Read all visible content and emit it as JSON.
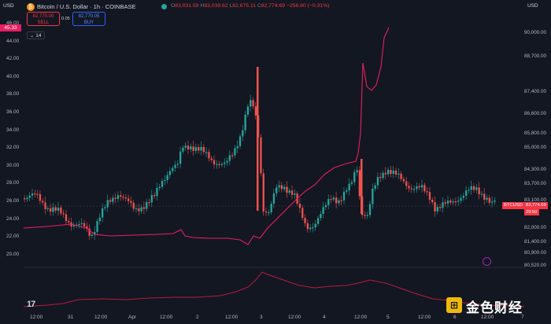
{
  "header": {
    "symbol_icon": "bitcoin-icon",
    "title": "Bitcoin / U.S. Dollar · 1h · COINBASE",
    "ohlc": {
      "o_label": "O",
      "o": "83,031.59",
      "h_label": "H",
      "h": "83,039.62",
      "l_label": "L",
      "l": "82,675.11",
      "c_label": "C",
      "c": "82,774.69",
      "chg": "−256.90 (−0.31%)"
    },
    "sell": {
      "price": "82,770.00",
      "label": "SELL"
    },
    "buy": {
      "price": "82,770.05",
      "label": "BUY"
    },
    "spread": "0.05"
  },
  "left_axis": {
    "currency": "USD",
    "current_tag": "45.33",
    "labels": [
      "46.00",
      "44.00",
      "42.00",
      "40.00",
      "38.00",
      "36.00",
      "34.00",
      "32.00",
      "30.00",
      "28.00",
      "26.00",
      "24.00",
      "22.00",
      "20.00"
    ]
  },
  "indicator_label": "14",
  "right_axis": {
    "currency": "USD",
    "labels": [
      "90,000.00",
      "88,700.00",
      "87,400.00",
      "86,600.00",
      "85,800.00",
      "85,000.00",
      "84,300.00",
      "83,700.00",
      "83,100.00",
      "82,000.00",
      "81,400.00",
      "80,900.00",
      "80,520.00"
    ]
  },
  "price_tag": {
    "symbol": "BTCUSD",
    "value": "82,774.69",
    "time": "29:50"
  },
  "time_axis": [
    "12:00",
    "31",
    "12:00",
    "Apr",
    "12:00",
    "2",
    "12:00",
    "3",
    "12:00",
    "4",
    "12:00",
    "5",
    "12:00",
    "6",
    "12:00",
    "7"
  ],
  "colors": {
    "up": "#26a69a",
    "down": "#ef5350",
    "indicator": "#e91e63",
    "background": "#131722"
  },
  "watermark": {
    "text": "金色财经",
    "icon": "jinse-logo-icon"
  },
  "tv_logo": "17"
}
